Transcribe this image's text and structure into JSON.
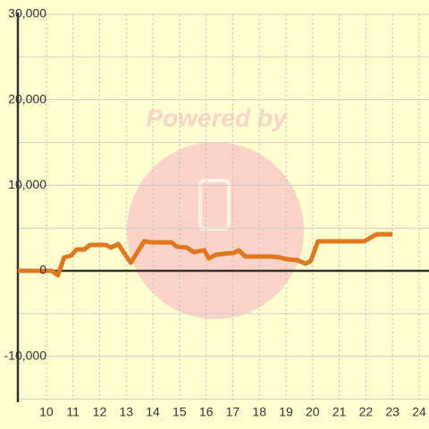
{
  "chart_data": {
    "type": "line",
    "watermark": "Powered by",
    "x": [
      8.93,
      10.2,
      10.43,
      10.67,
      10.93,
      11.13,
      11.43,
      11.63,
      12.23,
      12.43,
      12.7,
      13.17,
      13.67,
      13.93,
      14.7,
      14.9,
      15.27,
      15.53,
      15.93,
      16.1,
      16.37,
      16.63,
      17.03,
      17.23,
      17.47,
      18.43,
      18.77,
      19.03,
      19.43,
      19.73,
      19.93,
      20.2,
      21.93,
      22.4,
      23.0
    ],
    "series": [
      {
        "color": "#e07820",
        "values": [
          0,
          0,
          -520,
          1570,
          1780,
          2500,
          2500,
          3030,
          3030,
          2720,
          3130,
          940,
          3450,
          3340,
          3340,
          2820,
          2720,
          2190,
          2400,
          1460,
          1880,
          1990,
          2090,
          2400,
          1670,
          1670,
          1570,
          1360,
          1250,
          840,
          1150,
          3450,
          3450,
          4280,
          4280
        ]
      }
    ],
    "xlim": [
      8.93,
      24.37
    ],
    "xticks": [
      10,
      11,
      12,
      13,
      14,
      15,
      16,
      17,
      18,
      19,
      20,
      21,
      22,
      23,
      24
    ],
    "ylim": [
      -15360,
      30000
    ],
    "yticks": [
      {
        "value": -10000,
        "label": "-10,000"
      },
      0,
      {
        "value": 10000,
        "label": "10,000"
      },
      {
        "value": 20000,
        "label": "20,000"
      },
      {
        "value": 30000,
        "label": "30,000"
      }
    ],
    "yminorticks": [
      -15000,
      -5000,
      5000,
      15000,
      25000
    ],
    "grid": true
  }
}
